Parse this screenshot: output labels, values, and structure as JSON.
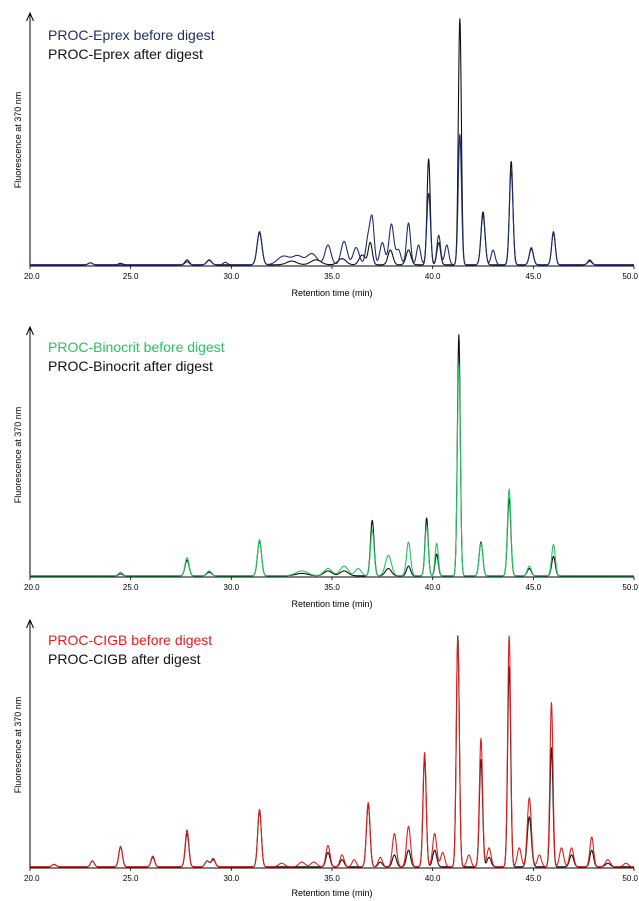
{
  "chart_data": [
    {
      "type": "line",
      "title": "",
      "xlabel": "Retention time (min)",
      "ylabel": "Fluorescence at 370 nm",
      "xlim": [
        20.0,
        50.0
      ],
      "ylim": [
        0,
        100
      ],
      "xticks": [
        "20.0",
        "25.0",
        "30.0",
        "35.0",
        "40.0",
        "45.0",
        "50.0"
      ],
      "legend_position": "top-left",
      "baseline": 0.5,
      "series": [
        {
          "name": "PROC-Eprex before digest",
          "color": "#1f2d6b",
          "peaks": [
            [
              23.0,
              0.8,
              0.1
            ],
            [
              27.8,
              1.2,
              0.1
            ],
            [
              28.9,
              2.0,
              0.12
            ],
            [
              29.7,
              1.0,
              0.1
            ],
            [
              31.4,
              13.5,
              0.12
            ],
            [
              32.6,
              3.5,
              0.3
            ],
            [
              33.3,
              3.5,
              0.25
            ],
            [
              34.0,
              4.5,
              0.25
            ],
            [
              34.8,
              8.0,
              0.15
            ],
            [
              35.6,
              9.5,
              0.15
            ],
            [
              36.2,
              7.0,
              0.15
            ],
            [
              36.8,
              11.0,
              0.12
            ],
            [
              37.0,
              17.0,
              0.1
            ],
            [
              37.5,
              9.0,
              0.12
            ],
            [
              37.95,
              16.5,
              0.12
            ],
            [
              38.3,
              6.0,
              0.12
            ],
            [
              38.8,
              17.0,
              0.1
            ],
            [
              39.3,
              8.0,
              0.1
            ],
            [
              39.8,
              29.0,
              0.09
            ],
            [
              40.3,
              12.0,
              0.09
            ],
            [
              40.7,
              8.0,
              0.1
            ],
            [
              41.35,
              53.0,
              0.08
            ],
            [
              42.5,
              20.0,
              0.1
            ],
            [
              43.0,
              6.0,
              0.1
            ],
            [
              43.9,
              38.0,
              0.09
            ],
            [
              44.9,
              7.0,
              0.1
            ],
            [
              46.0,
              13.5,
              0.09
            ],
            [
              47.8,
              2.0,
              0.1
            ]
          ]
        },
        {
          "name": "PROC-Eprex after digest",
          "color": "#111111",
          "peaks": [
            [
              23.0,
              0.8,
              0.1
            ],
            [
              24.5,
              0.6,
              0.1
            ],
            [
              27.8,
              2.0,
              0.1
            ],
            [
              28.9,
              1.8,
              0.12
            ],
            [
              31.4,
              13.0,
              0.12
            ],
            [
              33.0,
              1.5,
              0.25
            ],
            [
              34.2,
              2.0,
              0.25
            ],
            [
              35.5,
              2.5,
              0.2
            ],
            [
              36.5,
              4.0,
              0.15
            ],
            [
              36.9,
              9.0,
              0.1
            ],
            [
              37.9,
              6.0,
              0.12
            ],
            [
              38.8,
              6.0,
              0.12
            ],
            [
              39.8,
              43.0,
              0.08
            ],
            [
              40.3,
              9.0,
              0.09
            ],
            [
              41.35,
              100.0,
              0.075
            ],
            [
              42.5,
              21.5,
              0.1
            ],
            [
              43.9,
              42.0,
              0.085
            ],
            [
              44.9,
              6.5,
              0.1
            ],
            [
              46.0,
              13.0,
              0.09
            ],
            [
              47.8,
              1.5,
              0.1
            ]
          ]
        }
      ]
    },
    {
      "type": "line",
      "title": "",
      "xlabel": "Retention time (min)",
      "ylabel": "Fluorescence at 370 nm",
      "xlim": [
        20.0,
        50.0
      ],
      "ylim": [
        0,
        100
      ],
      "xticks": [
        "20.0",
        "25.0",
        "30.0",
        "35.0",
        "40.0",
        "45.0",
        "50.0"
      ],
      "legend_position": "top-left",
      "baseline": 0.5,
      "series": [
        {
          "name": "PROC-Binocrit before digest",
          "color": "#22c55e",
          "peaks": [
            [
              24.5,
              1.5,
              0.1
            ],
            [
              27.8,
              7.5,
              0.1
            ],
            [
              28.9,
              2.0,
              0.12
            ],
            [
              31.4,
              15.0,
              0.1
            ],
            [
              33.5,
              2.0,
              0.3
            ],
            [
              34.8,
              3.0,
              0.2
            ],
            [
              35.6,
              4.0,
              0.2
            ],
            [
              36.3,
              3.0,
              0.15
            ],
            [
              37.0,
              19.0,
              0.09
            ],
            [
              37.8,
              8.5,
              0.15
            ],
            [
              38.8,
              14.0,
              0.1
            ],
            [
              39.7,
              21.0,
              0.08
            ],
            [
              40.2,
              13.5,
              0.08
            ],
            [
              41.3,
              88.0,
              0.075
            ],
            [
              42.4,
              13.5,
              0.09
            ],
            [
              43.8,
              36.0,
              0.085
            ],
            [
              44.8,
              4.0,
              0.1
            ],
            [
              46.0,
              13.0,
              0.09
            ]
          ]
        },
        {
          "name": "PROC-Binocrit after digest",
          "color": "#111111",
          "peaks": [
            [
              24.5,
              0.8,
              0.1
            ],
            [
              27.8,
              6.5,
              0.1
            ],
            [
              28.9,
              1.5,
              0.12
            ],
            [
              31.4,
              14.5,
              0.1
            ],
            [
              33.5,
              1.0,
              0.3
            ],
            [
              34.8,
              2.0,
              0.2
            ],
            [
              35.6,
              2.0,
              0.2
            ],
            [
              37.0,
              23.0,
              0.09
            ],
            [
              37.8,
              3.0,
              0.15
            ],
            [
              38.8,
              4.0,
              0.1
            ],
            [
              39.7,
              24.0,
              0.08
            ],
            [
              40.2,
              9.0,
              0.08
            ],
            [
              41.3,
              100.0,
              0.072
            ],
            [
              42.4,
              14.0,
              0.09
            ],
            [
              43.8,
              32.0,
              0.085
            ],
            [
              44.8,
              3.0,
              0.1
            ],
            [
              46.0,
              8.0,
              0.09
            ]
          ]
        }
      ]
    },
    {
      "type": "line",
      "title": "",
      "xlabel": "Retention time (min)",
      "ylabel": "Fluorescence at 370 nm",
      "xlim": [
        20.0,
        50.0
      ],
      "ylim": [
        0,
        100
      ],
      "xticks": [
        "20.0",
        "25.0",
        "30.0",
        "35.0",
        "40.0",
        "45.0",
        "50.0"
      ],
      "legend_position": "top-left",
      "baseline": 0.5,
      "series": [
        {
          "name": "PROC-CIGB before digest",
          "color": "#e11d1d",
          "peaks": [
            [
              21.2,
              1.0,
              0.1
            ],
            [
              23.1,
              2.5,
              0.09
            ],
            [
              24.5,
              8.5,
              0.09
            ],
            [
              26.1,
              4.5,
              0.09
            ],
            [
              27.8,
              15.5,
              0.09
            ],
            [
              28.8,
              2.5,
              0.1
            ],
            [
              29.1,
              3.5,
              0.1
            ],
            [
              31.4,
              24.0,
              0.09
            ],
            [
              32.5,
              1.5,
              0.15
            ],
            [
              33.5,
              2.0,
              0.15
            ],
            [
              34.1,
              2.0,
              0.15
            ],
            [
              34.8,
              9.0,
              0.1
            ],
            [
              35.5,
              5.0,
              0.1
            ],
            [
              36.1,
              3.0,
              0.1
            ],
            [
              36.8,
              27.0,
              0.09
            ],
            [
              37.4,
              4.0,
              0.1
            ],
            [
              38.1,
              14.0,
              0.1
            ],
            [
              38.8,
              17.0,
              0.1
            ],
            [
              39.6,
              48.0,
              0.08
            ],
            [
              40.1,
              14.0,
              0.1
            ],
            [
              40.5,
              6.0,
              0.1
            ],
            [
              41.25,
              96.0,
              0.075
            ],
            [
              41.8,
              5.0,
              0.1
            ],
            [
              42.4,
              54.0,
              0.08
            ],
            [
              42.8,
              8.0,
              0.1
            ],
            [
              43.8,
              97.0,
              0.075
            ],
            [
              44.3,
              8.0,
              0.1
            ],
            [
              44.8,
              29.0,
              0.1
            ],
            [
              45.3,
              5.0,
              0.1
            ],
            [
              45.9,
              69.0,
              0.075
            ],
            [
              46.4,
              8.0,
              0.1
            ],
            [
              46.9,
              8.0,
              0.1
            ],
            [
              47.9,
              12.5,
              0.09
            ],
            [
              48.7,
              3.0,
              0.12
            ],
            [
              49.6,
              1.5,
              0.12
            ]
          ]
        },
        {
          "name": "PROC-CIGB after digest",
          "color": "#111111",
          "peaks": [
            [
              21.2,
              1.0,
              0.1
            ],
            [
              23.1,
              2.5,
              0.09
            ],
            [
              24.5,
              8.5,
              0.09
            ],
            [
              26.1,
              4.0,
              0.09
            ],
            [
              27.8,
              14.0,
              0.09
            ],
            [
              28.8,
              2.5,
              0.1
            ],
            [
              29.1,
              3.0,
              0.1
            ],
            [
              31.4,
              24.0,
              0.09
            ],
            [
              34.8,
              6.0,
              0.1
            ],
            [
              35.5,
              3.0,
              0.1
            ],
            [
              36.8,
              26.0,
              0.09
            ],
            [
              37.4,
              2.0,
              0.1
            ],
            [
              38.1,
              5.0,
              0.1
            ],
            [
              38.8,
              7.0,
              0.1
            ],
            [
              39.6,
              46.0,
              0.08
            ],
            [
              40.1,
              7.0,
              0.1
            ],
            [
              41.25,
              97.0,
              0.075
            ],
            [
              42.4,
              45.0,
              0.08
            ],
            [
              42.8,
              4.0,
              0.1
            ],
            [
              43.8,
              84.0,
              0.075
            ],
            [
              44.8,
              21.0,
              0.1
            ],
            [
              45.9,
              50.0,
              0.075
            ],
            [
              46.9,
              5.0,
              0.1
            ],
            [
              47.9,
              7.0,
              0.09
            ],
            [
              48.7,
              1.5,
              0.12
            ]
          ]
        }
      ]
    }
  ]
}
